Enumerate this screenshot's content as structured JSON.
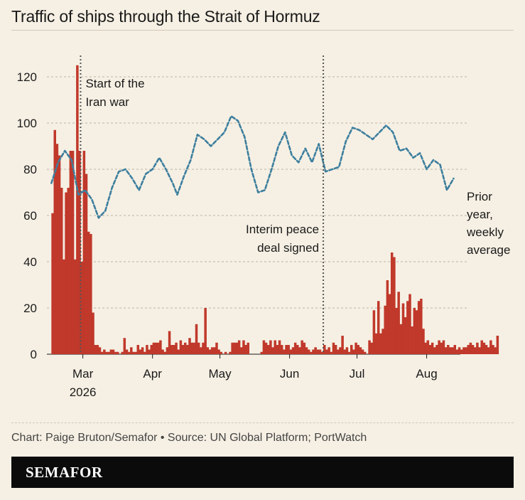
{
  "title": "Traffic of ships through the Strait of Hormuz",
  "credit": "Chart: Paige Bruton/Semafor • Source: UN Global Platform; PortWatch",
  "brand": "SEMAFOR",
  "colors": {
    "bars": "#c0392b",
    "line": "#3d7f9e",
    "background": "#f6f0e4",
    "brandbar": "#0b0b0b"
  },
  "chart_data": {
    "type": "bar",
    "ylim": [
      0,
      128
    ],
    "yticks": [
      0,
      20,
      40,
      60,
      80,
      100,
      120
    ],
    "xlim": [
      "2026-02-13",
      "2026-08-16"
    ],
    "xticks": [
      {
        "date": "2026-03-01",
        "label": "Mar"
      },
      {
        "date": "2026-04-01",
        "label": "Apr"
      },
      {
        "date": "2026-05-01",
        "label": "May"
      },
      {
        "date": "2026-06-01",
        "label": "Jun"
      },
      {
        "date": "2026-07-01",
        "label": "Jul"
      },
      {
        "date": "2026-08-01",
        "label": "Aug"
      }
    ],
    "year_label": "2026",
    "bars_start_date": "2026-02-15",
    "bars_values": [
      61,
      97,
      91,
      86,
      72,
      41,
      70,
      72,
      88,
      88,
      41,
      125,
      88,
      40,
      88,
      78,
      53,
      52,
      18,
      4,
      4,
      3,
      1,
      2,
      1,
      1,
      2,
      2,
      1,
      1,
      0,
      1,
      7,
      2,
      1,
      3,
      1,
      1,
      4,
      2,
      3,
      1,
      4,
      2,
      4,
      5,
      5,
      5,
      6,
      2,
      1,
      3,
      10,
      4,
      4,
      5,
      2,
      6,
      4,
      5,
      4,
      7,
      5,
      5,
      13,
      5,
      3,
      5,
      20,
      3,
      2,
      3,
      3,
      5,
      2,
      1,
      0,
      1,
      0,
      1,
      5,
      5,
      5,
      6,
      3,
      6,
      4,
      5,
      0,
      0,
      0,
      0,
      0,
      1,
      6,
      5,
      4,
      6,
      3,
      6,
      4,
      6,
      4,
      2,
      4,
      4,
      2,
      3,
      5,
      4,
      3,
      6,
      5,
      3,
      2,
      1,
      2,
      3,
      2,
      2,
      1,
      4,
      2,
      3,
      1,
      5,
      4,
      2,
      3,
      8,
      2,
      3,
      1,
      4,
      2,
      5,
      4,
      3,
      2,
      1,
      0,
      6,
      5,
      19,
      9,
      23,
      9,
      11,
      21,
      32,
      26,
      44,
      42,
      20,
      27,
      13,
      22,
      16,
      23,
      26,
      12,
      20,
      19,
      23,
      24,
      11,
      5,
      6,
      4,
      5,
      3,
      4,
      6,
      5,
      6,
      3,
      4,
      3,
      3,
      4,
      2,
      3,
      2,
      3,
      3,
      4,
      5,
      4,
      3,
      5,
      3,
      6,
      5,
      4,
      3,
      6,
      4,
      3,
      8
    ],
    "series": [
      {
        "name": "Prior year, weekly average",
        "style": "dotted line",
        "points": [
          [
            "2026-02-15",
            74
          ],
          [
            "2026-02-18",
            83
          ],
          [
            "2026-02-21",
            88
          ],
          [
            "2026-02-24",
            84
          ],
          [
            "2026-02-27",
            69
          ],
          [
            "2026-03-02",
            71
          ],
          [
            "2026-03-05",
            67
          ],
          [
            "2026-03-08",
            59
          ],
          [
            "2026-03-11",
            62
          ],
          [
            "2026-03-14",
            72
          ],
          [
            "2026-03-17",
            79
          ],
          [
            "2026-03-20",
            80
          ],
          [
            "2026-03-23",
            76
          ],
          [
            "2026-03-26",
            71
          ],
          [
            "2026-03-29",
            78
          ],
          [
            "2026-04-01",
            80
          ],
          [
            "2026-04-04",
            85
          ],
          [
            "2026-04-07",
            80
          ],
          [
            "2026-04-10",
            74
          ],
          [
            "2026-04-12",
            69
          ],
          [
            "2026-04-15",
            77
          ],
          [
            "2026-04-18",
            84
          ],
          [
            "2026-04-21",
            95
          ],
          [
            "2026-04-24",
            93
          ],
          [
            "2026-04-27",
            90
          ],
          [
            "2026-04-30",
            93
          ],
          [
            "2026-05-03",
            96
          ],
          [
            "2026-05-06",
            103
          ],
          [
            "2026-05-09",
            101
          ],
          [
            "2026-05-12",
            94
          ],
          [
            "2026-05-15",
            80
          ],
          [
            "2026-05-18",
            70
          ],
          [
            "2026-05-21",
            71
          ],
          [
            "2026-05-24",
            80
          ],
          [
            "2026-05-27",
            90
          ],
          [
            "2026-05-30",
            96
          ],
          [
            "2026-06-02",
            86
          ],
          [
            "2026-06-05",
            83
          ],
          [
            "2026-06-08",
            89
          ],
          [
            "2026-06-11",
            83
          ],
          [
            "2026-06-14",
            91
          ],
          [
            "2026-06-17",
            79
          ],
          [
            "2026-06-20",
            80
          ],
          [
            "2026-06-23",
            81
          ],
          [
            "2026-06-26",
            92
          ],
          [
            "2026-06-29",
            98
          ],
          [
            "2026-07-02",
            97
          ],
          [
            "2026-07-05",
            95
          ],
          [
            "2026-07-08",
            93
          ],
          [
            "2026-07-11",
            96
          ],
          [
            "2026-07-14",
            99
          ],
          [
            "2026-07-17",
            96
          ],
          [
            "2026-07-20",
            88
          ],
          [
            "2026-07-23",
            89
          ],
          [
            "2026-07-26",
            85
          ],
          [
            "2026-07-29",
            87
          ],
          [
            "2026-08-01",
            80
          ],
          [
            "2026-08-04",
            84
          ],
          [
            "2026-08-07",
            82
          ],
          [
            "2026-08-10",
            71
          ],
          [
            "2026-08-13",
            76
          ]
        ],
        "end_label": [
          "Prior",
          "year,",
          "weekly",
          "average"
        ]
      }
    ],
    "annotations": [
      {
        "date": "2026-02-28",
        "lines": [
          "Start of the",
          "Iran war"
        ]
      },
      {
        "date": "2026-06-16",
        "lines": [
          "Interim peace",
          "deal signed"
        ]
      }
    ]
  }
}
